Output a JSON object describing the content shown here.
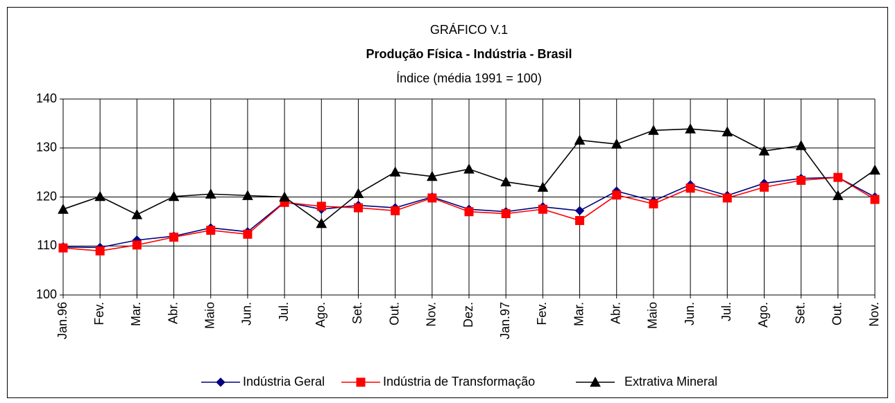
{
  "chart_data": {
    "type": "line",
    "title": "GRÁFICO V.1",
    "subtitle": "Produção Física - Indústria - Brasil",
    "y_label": "Índice (média 1991 = 100)",
    "categories": [
      "Jan.96",
      "Fev.",
      "Mar.",
      "Abr.",
      "Maio",
      "Jun.",
      "Jul.",
      "Ago.",
      "Set.",
      "Out.",
      "Nov.",
      "Dez.",
      "Jan.97",
      "Fev.",
      "Mar.",
      "Abr.",
      "Maio",
      "Jun.",
      "Jul.",
      "Ago.",
      "Set.",
      "Out.",
      "Nov."
    ],
    "series": [
      {
        "name": "Indústria Geral",
        "color": "#000080",
        "marker": "diamond",
        "values": [
          109.8,
          109.7,
          111.2,
          112.0,
          113.7,
          112.9,
          119.0,
          117.5,
          118.3,
          117.8,
          120.0,
          117.5,
          117.0,
          118.0,
          117.2,
          121.2,
          119.2,
          122.5,
          120.3,
          122.8,
          123.8,
          124.0,
          120.0
        ]
      },
      {
        "name": "Indústria de Transformação",
        "color": "#ff0000",
        "marker": "square",
        "values": [
          109.6,
          109.0,
          110.2,
          111.8,
          113.2,
          112.4,
          118.9,
          118.1,
          117.8,
          117.2,
          119.8,
          117.0,
          116.6,
          117.5,
          115.2,
          120.4,
          118.6,
          121.8,
          119.8,
          122.0,
          123.4,
          124.0,
          119.5
        ]
      },
      {
        "name": "Extrativa Mineral",
        "color": "#000000",
        "marker": "triangle",
        "values": [
          117.5,
          120.1,
          116.4,
          120.1,
          120.6,
          120.3,
          120.0,
          114.6,
          120.7,
          125.1,
          124.2,
          125.7,
          123.1,
          122.0,
          131.6,
          130.8,
          133.6,
          133.9,
          133.3,
          129.4,
          130.5,
          120.3,
          125.5
        ]
      }
    ],
    "ylim": [
      100,
      140
    ],
    "yticks": [
      100,
      110,
      120,
      130,
      140
    ],
    "grid": true,
    "legend": "bottom"
  }
}
